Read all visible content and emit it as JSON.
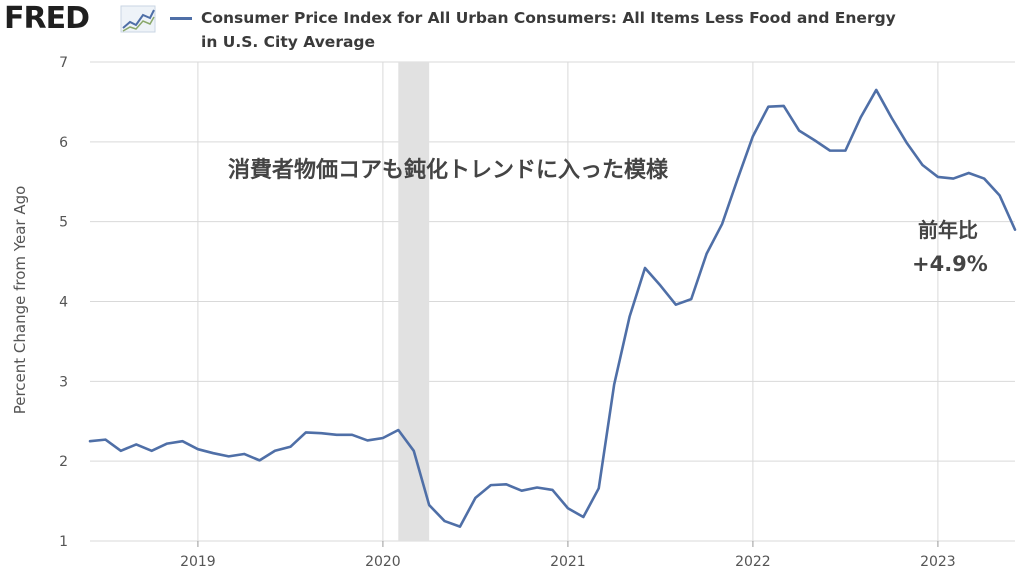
{
  "header": {
    "logo_text": "FRED",
    "legend_label": "Consumer Price Index for All Urban Consumers: All Items Less Food and Energy in U.S. City Average"
  },
  "annotations": {
    "headline": "消費者物価コアも鈍化トレンドに入った模様",
    "yoy_label": "前年比",
    "yoy_value": "+4.9%"
  },
  "chart_data": {
    "type": "line",
    "ylabel": "Percent Change from Year Ago",
    "ylim": [
      1,
      7
    ],
    "yticks": [
      1,
      2,
      3,
      4,
      5,
      6,
      7
    ],
    "xticks": [
      {
        "label": "2019",
        "t": 2019.0
      },
      {
        "label": "2020",
        "t": 2020.0
      },
      {
        "label": "2021",
        "t": 2021.0
      },
      {
        "label": "2022",
        "t": 2022.0
      },
      {
        "label": "2023",
        "t": 2023.0
      }
    ],
    "xlim": [
      2018.4167,
      2023.4167
    ],
    "grid": true,
    "recession": {
      "start": 2020.0833,
      "end": 2020.25,
      "color": "#e1e1e1"
    },
    "colors": {
      "line": "#4f6fa7",
      "grid": "#d9d9d9",
      "axis_text": "#555555"
    },
    "series": [
      {
        "start": "2018-06",
        "values": [
          2.25,
          2.27,
          2.13,
          2.21,
          2.13,
          2.22,
          2.25,
          2.15,
          2.1,
          2.06,
          2.09,
          2.01,
          2.13,
          2.18,
          2.36,
          2.35,
          2.33,
          2.33,
          2.26,
          2.29,
          2.39,
          2.13,
          1.45,
          1.25,
          1.18,
          1.54,
          1.7,
          1.71,
          1.63,
          1.67,
          1.64,
          1.41,
          1.3,
          1.66,
          2.96,
          3.81,
          4.42,
          4.2,
          3.96,
          4.03,
          4.6,
          4.97,
          5.53,
          6.07,
          6.44,
          6.45,
          6.14,
          6.02,
          5.89,
          5.89,
          6.31,
          6.65,
          6.3,
          5.98,
          5.71,
          5.56,
          5.54,
          5.61,
          5.54,
          5.33,
          4.9
        ]
      }
    ]
  }
}
